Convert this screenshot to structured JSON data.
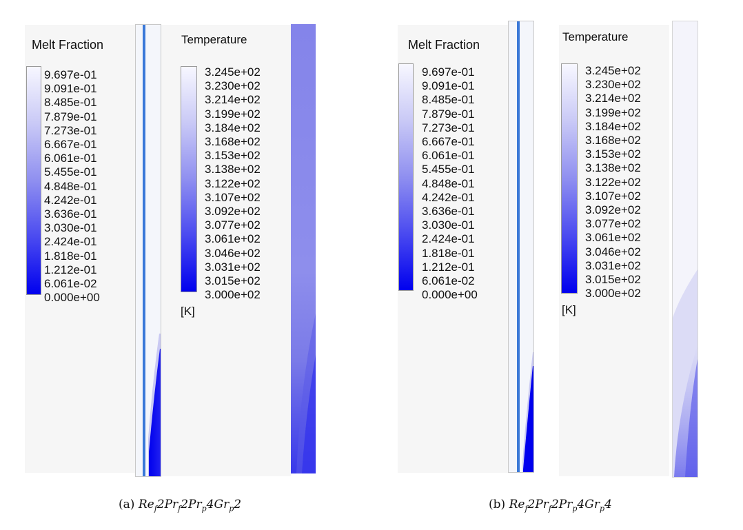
{
  "panels": [
    {
      "id": "a",
      "melt_legend": {
        "title": "Melt Fraction",
        "ticks": [
          "9.697e-01",
          "9.091e-01",
          "8.485e-01",
          "7.879e-01",
          "7.273e-01",
          "6.667e-01",
          "6.061e-01",
          "5.455e-01",
          "4.848e-01",
          "4.242e-01",
          "3.636e-01",
          "3.030e-01",
          "2.424e-01",
          "1.818e-01",
          "1.212e-01",
          "6.061e-02",
          "0.000e+00"
        ]
      },
      "temp_legend": {
        "title": "Temperature",
        "ticks": [
          "3.245e+02",
          "3.230e+02",
          "3.214e+02",
          "3.199e+02",
          "3.184e+02",
          "3.168e+02",
          "3.153e+02",
          "3.138e+02",
          "3.122e+02",
          "3.107e+02",
          "3.092e+02",
          "3.077e+02",
          "3.061e+02",
          "3.046e+02",
          "3.031e+02",
          "3.015e+02",
          "3.000e+02"
        ],
        "unit": "[K]"
      },
      "caption": {
        "label": "(a)",
        "math": "Ref2Prf2Prp4Grp2"
      }
    },
    {
      "id": "b",
      "melt_legend": {
        "title": "Melt Fraction",
        "ticks": [
          "9.697e-01",
          "9.091e-01",
          "8.485e-01",
          "7.879e-01",
          "7.273e-01",
          "6.667e-01",
          "6.061e-01",
          "5.455e-01",
          "4.848e-01",
          "4.242e-01",
          "3.636e-01",
          "3.030e-01",
          "2.424e-01",
          "1.818e-01",
          "1.212e-01",
          "6.061e-02",
          "0.000e+00"
        ]
      },
      "temp_legend": {
        "title": "Temperature",
        "ticks": [
          "3.245e+02",
          "3.230e+02",
          "3.214e+02",
          "3.199e+02",
          "3.184e+02",
          "3.168e+02",
          "3.153e+02",
          "3.138e+02",
          "3.122e+02",
          "3.107e+02",
          "3.092e+02",
          "3.077e+02",
          "3.061e+02",
          "3.046e+02",
          "3.031e+02",
          "3.015e+02",
          "3.000e+02"
        ],
        "unit": "[K]"
      },
      "caption": {
        "label": "(b)",
        "math": "Ref2Prf2Prp4Grp4"
      }
    }
  ],
  "colors": {
    "colormap_top": "#f7f7ff",
    "colormap_bottom": "#0000ee",
    "pipe_line": "#3a78d8",
    "temp_field": "#8a8aec"
  }
}
